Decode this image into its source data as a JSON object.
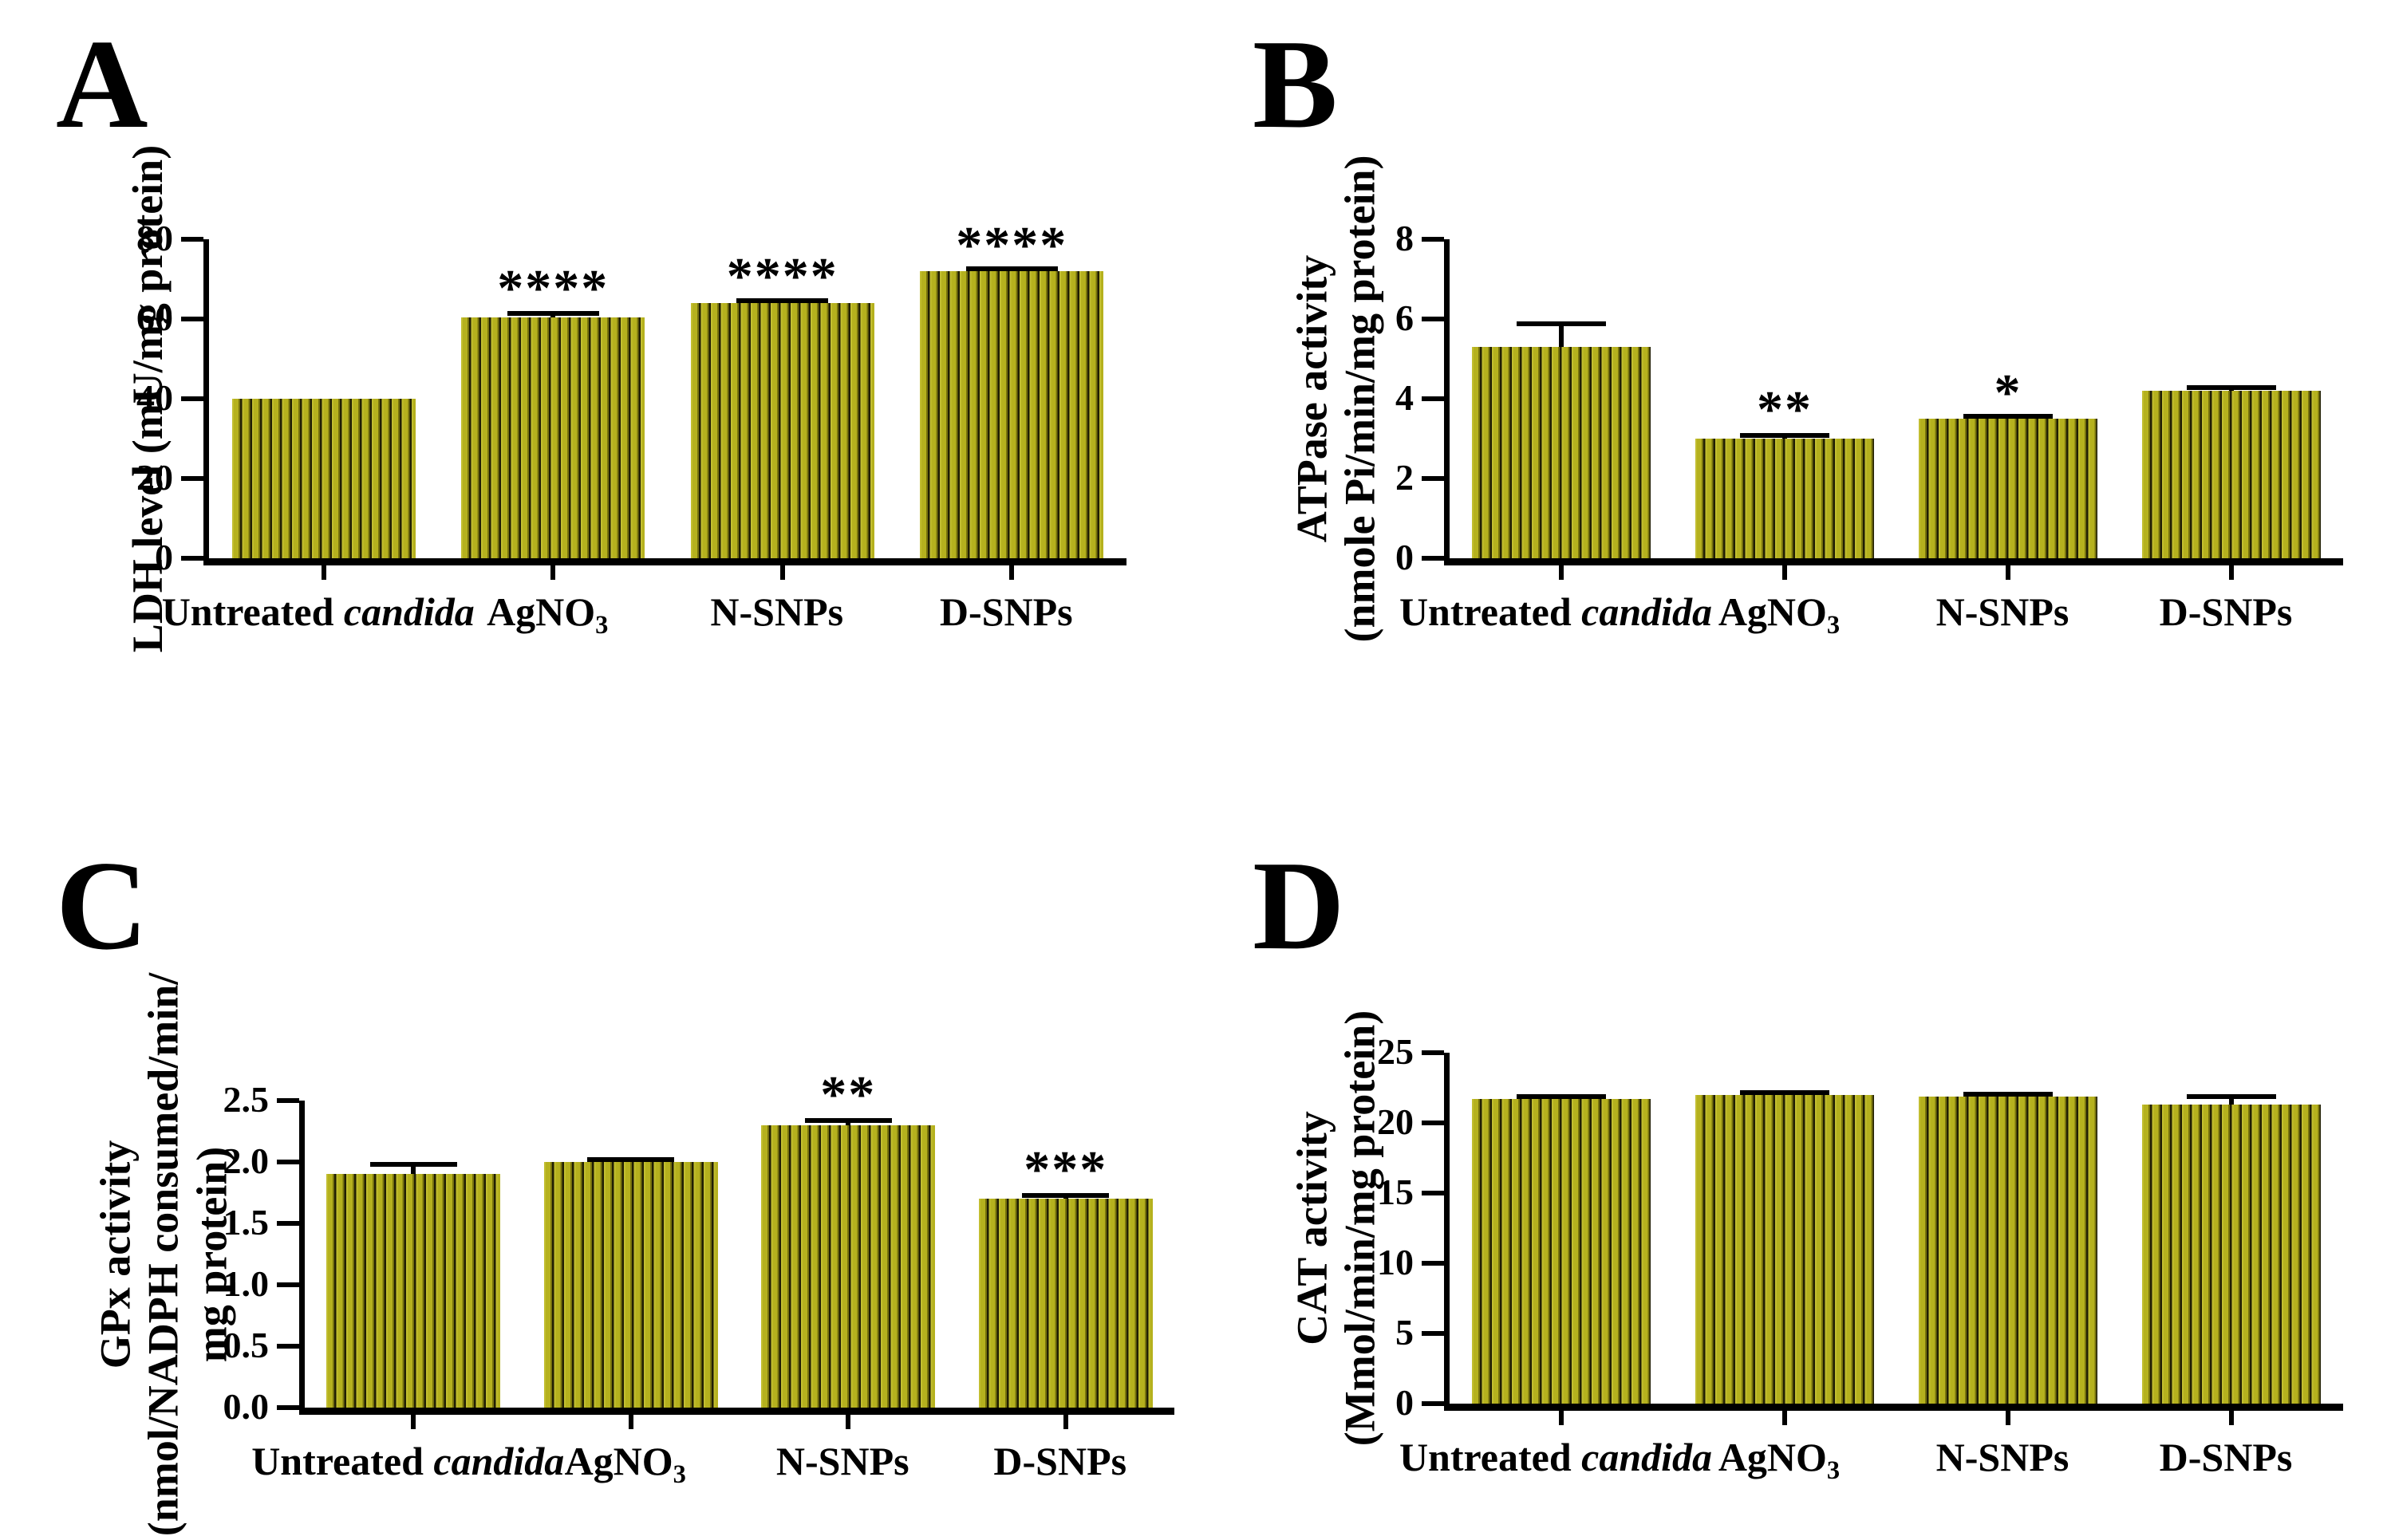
{
  "figure": {
    "background": "#ffffff",
    "text_color": "#000000",
    "axis_color": "#000000",
    "bar_style": {
      "fill": "#b5b11e",
      "fill_highlight": "#c2be30",
      "stripe_dark": "#77720e",
      "stripe_line": "#201e04",
      "hatch": "vertical-lines"
    },
    "categories_rich": [
      [
        {
          "t": "Untreated ",
          "style": "normal"
        },
        {
          "t": "candida",
          "style": "italic"
        }
      ],
      [
        {
          "t": "AgNO",
          "style": "normal"
        },
        {
          "t": "3",
          "style": "sub"
        }
      ],
      [
        {
          "t": "N-SNPs",
          "style": "normal"
        }
      ],
      [
        {
          "t": "D-SNPs",
          "style": "normal"
        }
      ]
    ]
  },
  "chart_data": [
    {
      "panel": "A",
      "type": "bar",
      "ylabel_lines": [
        "LDH level (mU/mg protein)"
      ],
      "categories": [
        "Untreated candida",
        "AgNO3",
        "N-SNPs",
        "D-SNPs"
      ],
      "values": [
        40,
        60.5,
        64,
        72
      ],
      "errors": [
        0,
        1.5,
        0.9,
        0.8
      ],
      "significance": [
        "",
        "****",
        "****",
        "****"
      ],
      "ylim": [
        0,
        80
      ],
      "yticks": [
        0,
        20,
        40,
        60,
        80
      ],
      "ytick_labels": [
        "0",
        "20",
        "40",
        "60",
        "80"
      ],
      "grid": false,
      "legend": null
    },
    {
      "panel": "B",
      "type": "bar",
      "ylabel_lines": [
        "ATPase activity",
        "(nmole Pi/min/mg protein)"
      ],
      "categories": [
        "Untreated candida",
        "AgNO3",
        "N-SNPs",
        "D-SNPs"
      ],
      "values": [
        5.3,
        3.0,
        3.5,
        4.2
      ],
      "errors": [
        0.65,
        0.15,
        0.07,
        0.15
      ],
      "significance": [
        "",
        "**",
        "*",
        ""
      ],
      "ylim": [
        0,
        8
      ],
      "yticks": [
        0,
        2,
        4,
        6,
        8
      ],
      "ytick_labels": [
        "0",
        "2",
        "4",
        "6",
        "8"
      ],
      "grid": false,
      "legend": null
    },
    {
      "panel": "C",
      "type": "bar",
      "ylabel_lines": [
        "GPx activity",
        "(nmol/NADPH consumed/min/",
        "mg protein)"
      ],
      "categories": [
        "Untreated candida",
        "AgNO3",
        "N-SNPs",
        "D-SNPs"
      ],
      "values": [
        1.9,
        2.0,
        2.3,
        1.7
      ],
      "errors": [
        0.1,
        0.03,
        0.06,
        0.05
      ],
      "significance": [
        "",
        "",
        "**",
        "***"
      ],
      "ylim": [
        0,
        2.5
      ],
      "yticks": [
        0,
        0.5,
        1.0,
        1.5,
        2.0,
        2.5
      ],
      "ytick_labels": [
        "0.0",
        "0.5",
        "1.0",
        "1.5",
        "2.0",
        "2.5"
      ],
      "grid": false,
      "legend": null
    },
    {
      "panel": "D",
      "type": "bar",
      "ylabel_lines": [
        "CAT activity",
        "(Mmol/min/mg protein)"
      ],
      "categories": [
        "Untreated candida",
        "AgNO3",
        "N-SNPs",
        "D-SNPs"
      ],
      "values": [
        21.7,
        22.0,
        21.9,
        21.3
      ],
      "errors": [
        0.35,
        0.15,
        0.2,
        0.75
      ],
      "significance": [
        "",
        "",
        "",
        ""
      ],
      "ylim": [
        0,
        25
      ],
      "yticks": [
        0,
        5,
        10,
        15,
        20,
        25
      ],
      "ytick_labels": [
        "0",
        "5",
        "10",
        "15",
        "20",
        "25"
      ],
      "grid": false,
      "legend": null
    }
  ]
}
